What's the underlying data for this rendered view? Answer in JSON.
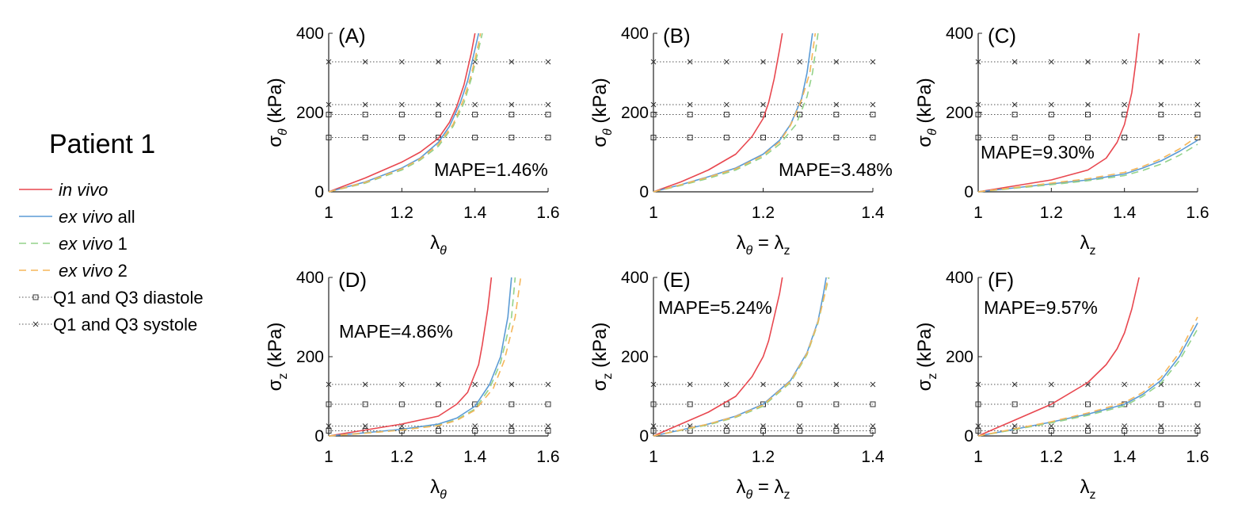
{
  "legend": {
    "title": "Patient 1",
    "entries": [
      {
        "key": "invivo",
        "label_pre": "",
        "label_em": "in vivo",
        "label_post": "",
        "color": "#e8474f",
        "dash": "solid",
        "marker": "none"
      },
      {
        "key": "exall",
        "label_pre": "",
        "label_em": "ex vivo",
        "label_post": " all",
        "color": "#5b9bd5",
        "dash": "solid",
        "marker": "none"
      },
      {
        "key": "ex1",
        "label_pre": "",
        "label_em": "ex vivo",
        "label_post": " 1",
        "color": "#93d28a",
        "dash": "dashed",
        "marker": "none"
      },
      {
        "key": "ex2",
        "label_pre": "",
        "label_em": "ex vivo",
        "label_post": " 2",
        "color": "#f5b65a",
        "dash": "dashed",
        "marker": "none"
      },
      {
        "key": "diastole",
        "label_pre": "Q1 and Q3 diastole",
        "label_em": "",
        "label_post": "",
        "color": "#444444",
        "dash": "dotted",
        "marker": "square"
      },
      {
        "key": "systole",
        "label_pre": "Q1 and Q3 systole",
        "label_em": "",
        "label_post": "",
        "color": "#444444",
        "dash": "dotted",
        "marker": "x"
      }
    ]
  },
  "chart_data": [
    {
      "type": "line",
      "panel": "(A)",
      "annotation": "MAPE=1.46%",
      "xlabel": "λ",
      "xlabel_sub": "θ",
      "ylabel": "σ",
      "ylabel_sub": "θ",
      "ylabel_unit": "(kPa)",
      "xlim": [
        1,
        1.6
      ],
      "ylim": [
        0,
        400
      ],
      "xticks": [
        1,
        1.2,
        1.4,
        1.6
      ],
      "yticks": [
        0,
        200,
        400
      ],
      "hlines": {
        "x": [
          1,
          1.1,
          1.2,
          1.3,
          1.4,
          1.5,
          1.6
        ],
        "diastole": [
          137,
          195
        ],
        "systole": [
          220,
          328
        ]
      },
      "series": [
        {
          "key": "invivo",
          "x": [
            1,
            1.1,
            1.2,
            1.25,
            1.3,
            1.33,
            1.35,
            1.37,
            1.39,
            1.4
          ],
          "y": [
            0,
            35,
            75,
            100,
            135,
            175,
            215,
            270,
            350,
            400
          ]
        },
        {
          "key": "exall",
          "x": [
            1,
            1.1,
            1.2,
            1.25,
            1.3,
            1.33,
            1.36,
            1.38,
            1.4,
            1.41
          ],
          "y": [
            0,
            25,
            60,
            85,
            125,
            165,
            225,
            280,
            360,
            400
          ]
        },
        {
          "key": "ex1",
          "x": [
            1,
            1.1,
            1.2,
            1.25,
            1.3,
            1.34,
            1.37,
            1.39,
            1.41,
            1.42
          ],
          "y": [
            0,
            22,
            55,
            80,
            115,
            165,
            225,
            285,
            360,
            400
          ]
        },
        {
          "key": "ex2",
          "x": [
            1,
            1.1,
            1.2,
            1.25,
            1.3,
            1.34,
            1.37,
            1.39,
            1.41,
            1.415
          ],
          "y": [
            0,
            24,
            58,
            83,
            120,
            170,
            235,
            295,
            375,
            400
          ]
        }
      ]
    },
    {
      "type": "line",
      "panel": "(B)",
      "annotation": "MAPE=3.48%",
      "xlabel": "λ",
      "xlabel_sub": "θ",
      "xlabel_eq": " = λ",
      "xlabel_eq_sub": "z",
      "ylabel": "σ",
      "ylabel_sub": "θ",
      "ylabel_unit": "(kPa)",
      "xlim": [
        1,
        1.4
      ],
      "ylim": [
        0,
        400
      ],
      "xticks": [
        1,
        1.2,
        1.4
      ],
      "yticks": [
        0,
        200,
        400
      ],
      "hlines": {
        "x": [
          1,
          1.066667,
          1.133333,
          1.2,
          1.266667,
          1.333333,
          1.4
        ],
        "diastole": [
          137,
          195
        ],
        "systole": [
          220,
          328
        ]
      },
      "series": [
        {
          "key": "invivo",
          "x": [
            1,
            1.05,
            1.1,
            1.15,
            1.18,
            1.2,
            1.21,
            1.22,
            1.23,
            1.235
          ],
          "y": [
            0,
            25,
            55,
            95,
            140,
            185,
            225,
            285,
            360,
            400
          ]
        },
        {
          "key": "exall",
          "x": [
            1,
            1.05,
            1.1,
            1.15,
            1.2,
            1.23,
            1.25,
            1.27,
            1.28,
            1.29
          ],
          "y": [
            0,
            18,
            38,
            60,
            95,
            130,
            170,
            235,
            300,
            400
          ]
        },
        {
          "key": "ex1",
          "x": [
            1,
            1.05,
            1.1,
            1.15,
            1.2,
            1.23,
            1.26,
            1.28,
            1.29,
            1.3
          ],
          "y": [
            0,
            16,
            34,
            55,
            88,
            120,
            170,
            240,
            300,
            400
          ]
        },
        {
          "key": "ex2",
          "x": [
            1,
            1.05,
            1.1,
            1.15,
            1.2,
            1.23,
            1.25,
            1.27,
            1.285,
            1.295
          ],
          "y": [
            0,
            18,
            37,
            58,
            92,
            126,
            168,
            232,
            300,
            400
          ]
        }
      ]
    },
    {
      "type": "line",
      "panel": "(C)",
      "annotation": "MAPE=9.30%",
      "xlabel": "λ",
      "xlabel_sub": "z",
      "ylabel": "σ",
      "ylabel_sub": "θ",
      "ylabel_unit": "(kPa)",
      "xlim": [
        1,
        1.6
      ],
      "ylim": [
        0,
        400
      ],
      "xticks": [
        1,
        1.2,
        1.4,
        1.6
      ],
      "yticks": [
        0,
        200,
        400
      ],
      "hlines": {
        "x": [
          1,
          1.1,
          1.2,
          1.3,
          1.4,
          1.5,
          1.6
        ],
        "diastole": [
          137,
          195
        ],
        "systole": [
          220,
          328
        ]
      },
      "series": [
        {
          "key": "invivo",
          "x": [
            1,
            1.1,
            1.2,
            1.3,
            1.35,
            1.38,
            1.4,
            1.42,
            1.43,
            1.44
          ],
          "y": [
            0,
            15,
            30,
            55,
            85,
            125,
            170,
            250,
            320,
            400
          ]
        },
        {
          "key": "exall",
          "x": [
            1,
            1.1,
            1.2,
            1.3,
            1.4,
            1.45,
            1.5,
            1.55,
            1.6
          ],
          "y": [
            0,
            10,
            20,
            30,
            45,
            60,
            78,
            102,
            130
          ]
        },
        {
          "key": "ex1",
          "x": [
            1,
            1.1,
            1.2,
            1.3,
            1.4,
            1.45,
            1.5,
            1.55,
            1.6
          ],
          "y": [
            0,
            9,
            18,
            28,
            41,
            54,
            70,
            92,
            120
          ]
        },
        {
          "key": "ex2",
          "x": [
            1,
            1.1,
            1.2,
            1.3,
            1.4,
            1.45,
            1.5,
            1.55,
            1.6
          ],
          "y": [
            0,
            11,
            22,
            33,
            49,
            64,
            83,
            108,
            140
          ]
        }
      ]
    },
    {
      "type": "line",
      "panel": "(D)",
      "annotation": "MAPE=4.86%",
      "xlabel": "λ",
      "xlabel_sub": "θ",
      "ylabel": "σ",
      "ylabel_sub": "z",
      "ylabel_unit": "(kPa)",
      "xlim": [
        1,
        1.6
      ],
      "ylim": [
        0,
        400
      ],
      "xticks": [
        1,
        1.2,
        1.4,
        1.6
      ],
      "yticks": [
        0,
        200,
        400
      ],
      "hlines": {
        "x": [
          1,
          1.1,
          1.2,
          1.3,
          1.4,
          1.5,
          1.6
        ],
        "diastole": [
          13,
          80
        ],
        "systole": [
          25,
          130
        ]
      },
      "series": [
        {
          "key": "invivo",
          "x": [
            1,
            1.1,
            1.2,
            1.3,
            1.35,
            1.38,
            1.41,
            1.42,
            1.435,
            1.445
          ],
          "y": [
            0,
            15,
            30,
            50,
            80,
            110,
            180,
            230,
            320,
            400
          ]
        },
        {
          "key": "exall",
          "x": [
            1,
            1.1,
            1.2,
            1.3,
            1.35,
            1.4,
            1.44,
            1.47,
            1.49,
            1.5
          ],
          "y": [
            0,
            8,
            17,
            30,
            45,
            75,
            130,
            200,
            300,
            400
          ]
        },
        {
          "key": "ex1",
          "x": [
            1,
            1.1,
            1.2,
            1.3,
            1.35,
            1.4,
            1.44,
            1.47,
            1.5,
            1.51
          ],
          "y": [
            0,
            7,
            15,
            27,
            41,
            68,
            120,
            185,
            300,
            400
          ]
        },
        {
          "key": "ex2",
          "x": [
            1,
            1.1,
            1.2,
            1.3,
            1.35,
            1.4,
            1.45,
            1.48,
            1.51,
            1.525
          ],
          "y": [
            0,
            7,
            15,
            26,
            39,
            65,
            120,
            190,
            300,
            400
          ]
        }
      ]
    },
    {
      "type": "line",
      "panel": "(E)",
      "annotation": "MAPE=5.24%",
      "xlabel": "λ",
      "xlabel_sub": "θ",
      "xlabel_eq": " = λ",
      "xlabel_eq_sub": "z",
      "ylabel": "σ",
      "ylabel_sub": "z",
      "ylabel_unit": "(kPa)",
      "xlim": [
        1,
        1.4
      ],
      "ylim": [
        0,
        400
      ],
      "xticks": [
        1,
        1.2,
        1.4
      ],
      "yticks": [
        0,
        200,
        400
      ],
      "hlines": {
        "x": [
          1,
          1.066667,
          1.133333,
          1.2,
          1.266667,
          1.333333,
          1.4
        ],
        "diastole": [
          13,
          80
        ],
        "systole": [
          25,
          130
        ]
      },
      "series": [
        {
          "key": "invivo",
          "x": [
            1,
            1.05,
            1.1,
            1.15,
            1.18,
            1.2,
            1.21,
            1.22,
            1.23,
            1.235
          ],
          "y": [
            0,
            30,
            60,
            100,
            150,
            200,
            240,
            300,
            360,
            400
          ]
        },
        {
          "key": "exall",
          "x": [
            1,
            1.05,
            1.1,
            1.15,
            1.2,
            1.25,
            1.28,
            1.3,
            1.31,
            1.315
          ],
          "y": [
            0,
            15,
            30,
            50,
            80,
            140,
            210,
            290,
            360,
            400
          ]
        },
        {
          "key": "ex1",
          "x": [
            1,
            1.05,
            1.1,
            1.15,
            1.2,
            1.25,
            1.28,
            1.3,
            1.31,
            1.32
          ],
          "y": [
            0,
            14,
            28,
            47,
            75,
            135,
            205,
            285,
            345,
            400
          ]
        },
        {
          "key": "ex2",
          "x": [
            1,
            1.05,
            1.1,
            1.15,
            1.2,
            1.25,
            1.28,
            1.3,
            1.312,
            1.318
          ],
          "y": [
            0,
            15,
            30,
            49,
            78,
            138,
            208,
            288,
            355,
            400
          ]
        }
      ]
    },
    {
      "type": "line",
      "panel": "(F)",
      "annotation": "MAPE=9.57%",
      "xlabel": "λ",
      "xlabel_sub": "z",
      "ylabel": "σ",
      "ylabel_sub": "z",
      "ylabel_unit": "(kPa)",
      "xlim": [
        1,
        1.6
      ],
      "ylim": [
        0,
        400
      ],
      "xticks": [
        1,
        1.2,
        1.4,
        1.6
      ],
      "yticks": [
        0,
        200,
        400
      ],
      "hlines": {
        "x": [
          1,
          1.1,
          1.2,
          1.3,
          1.4,
          1.5,
          1.6
        ],
        "diastole": [
          13,
          80
        ],
        "systole": [
          25,
          130
        ]
      },
      "series": [
        {
          "key": "invivo",
          "x": [
            1,
            1.1,
            1.2,
            1.3,
            1.35,
            1.38,
            1.4,
            1.42,
            1.43,
            1.44
          ],
          "y": [
            0,
            40,
            80,
            135,
            180,
            220,
            260,
            320,
            360,
            400
          ]
        },
        {
          "key": "exall",
          "x": [
            1,
            1.1,
            1.2,
            1.3,
            1.4,
            1.45,
            1.5,
            1.55,
            1.6
          ],
          "y": [
            0,
            17,
            35,
            55,
            80,
            105,
            140,
            200,
            285
          ]
        },
        {
          "key": "ex1",
          "x": [
            1,
            1.1,
            1.2,
            1.3,
            1.4,
            1.45,
            1.5,
            1.55,
            1.6
          ],
          "y": [
            0,
            16,
            33,
            52,
            76,
            100,
            133,
            190,
            270
          ]
        },
        {
          "key": "ex2",
          "x": [
            1,
            1.1,
            1.2,
            1.3,
            1.4,
            1.45,
            1.5,
            1.55,
            1.6
          ],
          "y": [
            0,
            18,
            36,
            58,
            84,
            110,
            148,
            210,
            300
          ]
        }
      ]
    }
  ]
}
